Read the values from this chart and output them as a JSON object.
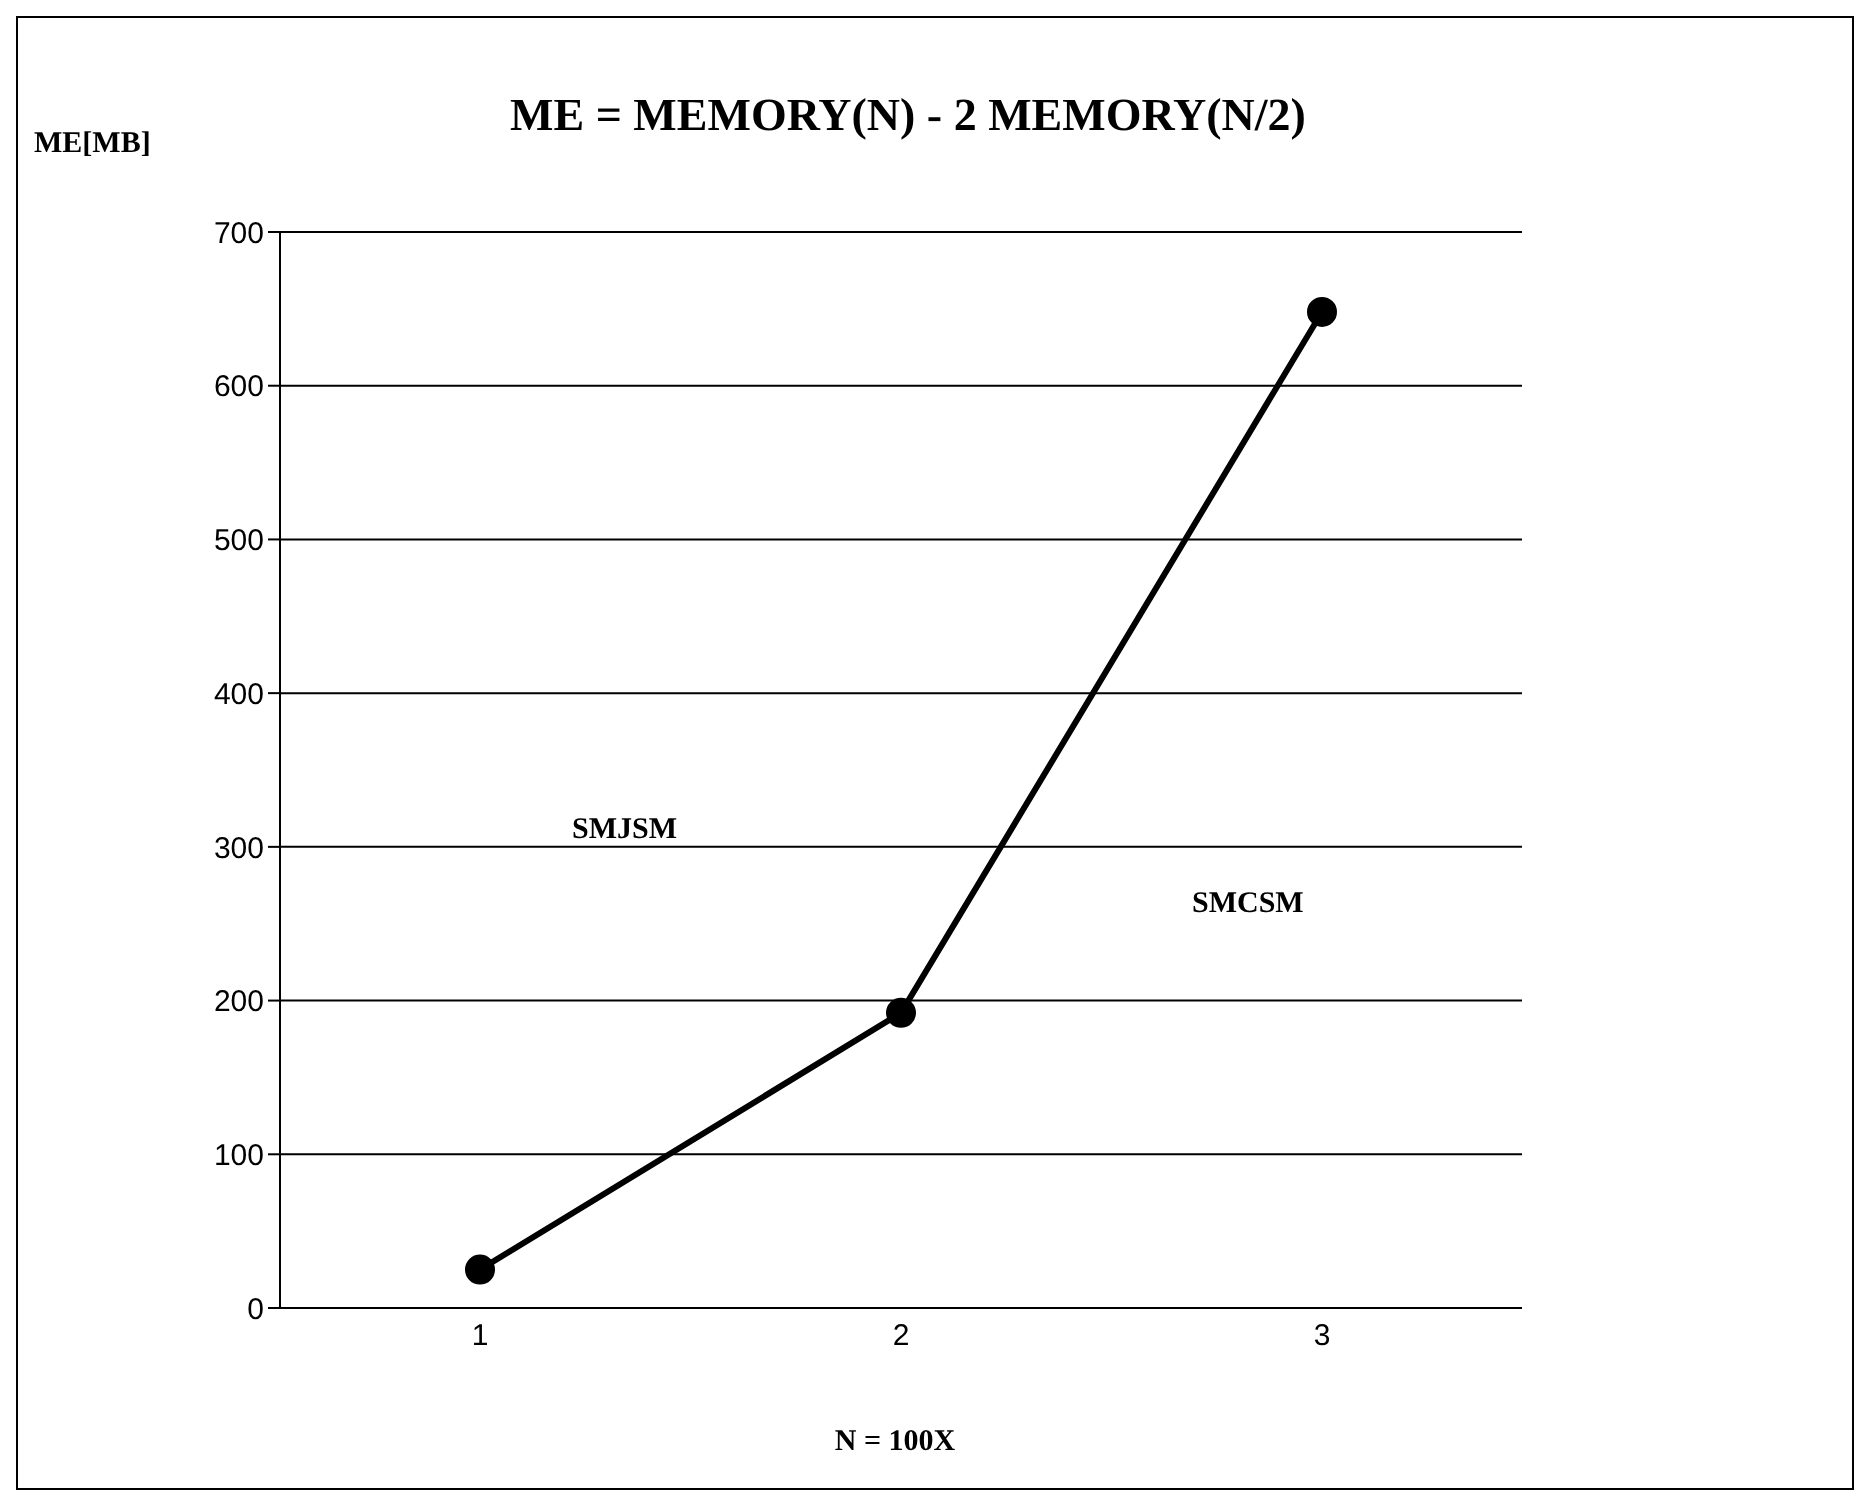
{
  "chart_data": {
    "type": "line",
    "title": "ME = MEMORY(N) - 2 MEMORY(N/2)",
    "xlabel": "N = 100X",
    "ylabel": "ME[MB]",
    "categories": [
      "1",
      "2",
      "3"
    ],
    "series": [
      {
        "color": "#000000",
        "values": [
          25,
          192,
          648
        ]
      }
    ],
    "annotations": [
      "SMJSM",
      "SMCSM"
    ],
    "ylim": [
      0,
      700
    ],
    "yticks": [
      0,
      100,
      200,
      300,
      400,
      500,
      600,
      700
    ],
    "grid": "y",
    "legend": false,
    "marker": "circle",
    "line_style": "solid"
  }
}
